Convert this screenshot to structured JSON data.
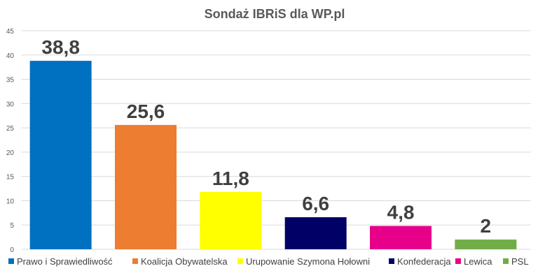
{
  "chart_data": {
    "type": "bar",
    "title": "Sondaż IBRiS dla WP.pl",
    "xlabel": "",
    "ylabel": "",
    "ylim": [
      0,
      45
    ],
    "yticks": [
      0,
      5,
      10,
      15,
      20,
      25,
      30,
      35,
      40,
      45
    ],
    "grid": true,
    "legend_position": "bottom",
    "categories": [
      "Prawo i Sprawiedliwość",
      "Koalicja Obywatelska",
      "Urupowanie Szymona Hołowni",
      "Konfederacja",
      "Lewica",
      "PSL"
    ],
    "values": [
      38.8,
      25.6,
      11.8,
      6.6,
      4.8,
      2
    ],
    "value_labels": [
      "38,8",
      "25,6",
      "11,8",
      "6,6",
      "4,8",
      "2"
    ],
    "colors": [
      "#0070c0",
      "#ed7d31",
      "#ffff00",
      "#000066",
      "#e6008a",
      "#70ad47"
    ]
  }
}
